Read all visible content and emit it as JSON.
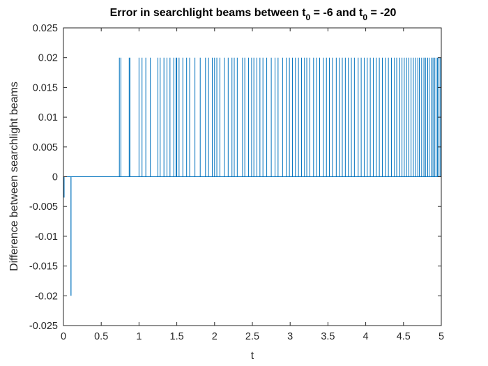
{
  "chart_data": {
    "type": "line",
    "title": {
      "p1": "Error in searchlight beams between t",
      "s1": "0",
      "p2": " = -6 and t",
      "s2": "0",
      "p3": " = -20"
    },
    "xlabel": "t",
    "ylabel": "Difference between searchlight beams",
    "xlim": [
      0,
      5
    ],
    "ylim": [
      -0.025,
      0.025
    ],
    "xticks": [
      "0",
      "0.5",
      "1",
      "1.5",
      "2",
      "2.5",
      "3",
      "3.5",
      "4",
      "4.5",
      "5"
    ],
    "yticks": [
      "-0.025",
      "-0.02",
      "-0.015",
      "-0.01",
      "-0.005",
      "0",
      "0.005",
      "0.01",
      "0.015",
      "0.02",
      "0.025"
    ],
    "grid": false,
    "legend": "none",
    "series": [
      {
        "color": "#0072BD",
        "baseline": 0,
        "negative_spikes": [
          {
            "t": 0.1,
            "value": -0.02
          }
        ],
        "positive_spikes": [
          {
            "t": 0.74,
            "value": 0.02
          },
          {
            "t": 0.76,
            "value": 0.02
          },
          {
            "t": 0.87,
            "value": 0.02
          },
          {
            "t": 0.88,
            "value": 0.02
          },
          {
            "t": 1.0,
            "value": 0.02
          },
          {
            "t": 1.04,
            "value": 0.02
          },
          {
            "t": 1.09,
            "value": 0.02
          },
          {
            "t": 1.15,
            "value": 0.02
          },
          {
            "t": 1.25,
            "value": 0.02
          },
          {
            "t": 1.28,
            "value": 0.02
          },
          {
            "t": 1.33,
            "value": 0.02
          },
          {
            "t": 1.37,
            "value": 0.02
          },
          {
            "t": 1.41,
            "value": 0.02
          },
          {
            "t": 1.46,
            "value": 0.02
          },
          {
            "t": 1.49,
            "value": 0.02
          },
          {
            "t": 1.5,
            "value": 0.02
          },
          {
            "t": 1.53,
            "value": 0.02
          },
          {
            "t": 1.58,
            "value": 0.02
          },
          {
            "t": 1.63,
            "value": 0.02
          },
          {
            "t": 1.67,
            "value": 0.02
          },
          {
            "t": 1.74,
            "value": 0.02
          },
          {
            "t": 1.81,
            "value": 0.02
          },
          {
            "t": 1.88,
            "value": 0.02
          },
          {
            "t": 1.92,
            "value": 0.02
          },
          {
            "t": 1.97,
            "value": 0.02
          },
          {
            "t": 2.0,
            "value": 0.02
          },
          {
            "t": 2.03,
            "value": 0.02
          },
          {
            "t": 2.07,
            "value": 0.02
          },
          {
            "t": 2.13,
            "value": 0.02
          },
          {
            "t": 2.18,
            "value": 0.02
          },
          {
            "t": 2.23,
            "value": 0.02
          },
          {
            "t": 2.26,
            "value": 0.02
          },
          {
            "t": 2.3,
            "value": 0.02
          },
          {
            "t": 2.37,
            "value": 0.02
          },
          {
            "t": 2.4,
            "value": 0.02
          },
          {
            "t": 2.45,
            "value": 0.02
          },
          {
            "t": 2.49,
            "value": 0.02
          },
          {
            "t": 2.52,
            "value": 0.02
          },
          {
            "t": 2.56,
            "value": 0.02
          },
          {
            "t": 2.6,
            "value": 0.02
          },
          {
            "t": 2.64,
            "value": 0.02
          },
          {
            "t": 2.69,
            "value": 0.02
          },
          {
            "t": 2.75,
            "value": 0.02
          },
          {
            "t": 2.8,
            "value": 0.02
          },
          {
            "t": 2.84,
            "value": 0.02
          },
          {
            "t": 2.9,
            "value": 0.02
          },
          {
            "t": 2.95,
            "value": 0.02
          },
          {
            "t": 2.99,
            "value": 0.02
          },
          {
            "t": 3.03,
            "value": 0.02
          },
          {
            "t": 3.07,
            "value": 0.02
          },
          {
            "t": 3.11,
            "value": 0.02
          },
          {
            "t": 3.15,
            "value": 0.02
          },
          {
            "t": 3.19,
            "value": 0.02
          },
          {
            "t": 3.22,
            "value": 0.02
          },
          {
            "t": 3.26,
            "value": 0.02
          },
          {
            "t": 3.31,
            "value": 0.02
          },
          {
            "t": 3.35,
            "value": 0.02
          },
          {
            "t": 3.39,
            "value": 0.02
          },
          {
            "t": 3.44,
            "value": 0.02
          },
          {
            "t": 3.48,
            "value": 0.02
          },
          {
            "t": 3.52,
            "value": 0.02
          },
          {
            "t": 3.56,
            "value": 0.02
          },
          {
            "t": 3.61,
            "value": 0.02
          },
          {
            "t": 3.65,
            "value": 0.02
          },
          {
            "t": 3.69,
            "value": 0.02
          },
          {
            "t": 3.73,
            "value": 0.02
          },
          {
            "t": 3.77,
            "value": 0.02
          },
          {
            "t": 3.81,
            "value": 0.02
          },
          {
            "t": 3.85,
            "value": 0.02
          },
          {
            "t": 3.9,
            "value": 0.02
          },
          {
            "t": 3.94,
            "value": 0.02
          },
          {
            "t": 3.98,
            "value": 0.02
          },
          {
            "t": 4.02,
            "value": 0.02
          },
          {
            "t": 4.06,
            "value": 0.02
          },
          {
            "t": 4.1,
            "value": 0.02
          },
          {
            "t": 4.14,
            "value": 0.02
          },
          {
            "t": 4.18,
            "value": 0.02
          },
          {
            "t": 4.22,
            "value": 0.02
          },
          {
            "t": 4.26,
            "value": 0.02
          },
          {
            "t": 4.3,
            "value": 0.02
          },
          {
            "t": 4.34,
            "value": 0.02
          },
          {
            "t": 4.38,
            "value": 0.02
          },
          {
            "t": 4.41,
            "value": 0.02
          },
          {
            "t": 4.45,
            "value": 0.02
          },
          {
            "t": 4.48,
            "value": 0.02
          },
          {
            "t": 4.51,
            "value": 0.02
          },
          {
            "t": 4.54,
            "value": 0.02
          },
          {
            "t": 4.57,
            "value": 0.02
          },
          {
            "t": 4.6,
            "value": 0.02
          },
          {
            "t": 4.63,
            "value": 0.02
          },
          {
            "t": 4.66,
            "value": 0.02
          },
          {
            "t": 4.69,
            "value": 0.02
          },
          {
            "t": 4.71,
            "value": 0.02
          },
          {
            "t": 4.74,
            "value": 0.02
          },
          {
            "t": 4.77,
            "value": 0.02
          },
          {
            "t": 4.79,
            "value": 0.02
          },
          {
            "t": 4.82,
            "value": 0.02
          },
          {
            "t": 4.84,
            "value": 0.02
          },
          {
            "t": 4.87,
            "value": 0.02
          },
          {
            "t": 4.89,
            "value": 0.02
          },
          {
            "t": 4.91,
            "value": 0.02
          },
          {
            "t": 4.93,
            "value": 0.02
          },
          {
            "t": 4.95,
            "value": 0.02
          },
          {
            "t": 4.97,
            "value": 0.02
          },
          {
            "t": 4.99,
            "value": 0.02
          }
        ]
      }
    ]
  }
}
